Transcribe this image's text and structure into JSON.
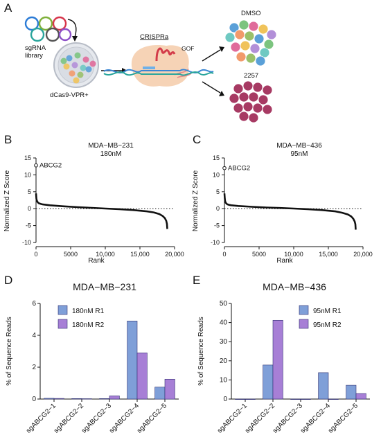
{
  "panels": {
    "a": "A",
    "b": "B",
    "c": "C",
    "d": "D",
    "e": "E"
  },
  "schematic": {
    "library_label_1": "sgRNA",
    "library_label_2": "library",
    "dish_label": "dCas9-VPR+",
    "crispr_label": "CRISPRa",
    "gof_label": "GOF",
    "dmso_label": "DMSO",
    "drug_label": "2257"
  },
  "colors": {
    "r1": "#7f9fd8",
    "r2": "#a77fd6",
    "curve": "#111111",
    "dmso_cells": [
      "#5aa0d8",
      "#7cc47f",
      "#e06b9a",
      "#f0c35a",
      "#b28fd8",
      "#6fc9c2",
      "#f29a6b",
      "#9ac06a"
    ],
    "drug_cells": "#a73a63"
  },
  "chart_data": [
    {
      "type": "line",
      "panel": "B",
      "title_line1": "MDA−MB−231",
      "title_line2": "180nM",
      "xlabel": "Rank",
      "ylabel": "Normalized Z Score",
      "xlim": [
        0,
        20000
      ],
      "ylim": [
        -10,
        15
      ],
      "xticks": [
        "0",
        "5000",
        "10,000",
        "15,000",
        "20,000"
      ],
      "yticks": [
        "-10",
        "-5",
        "0",
        "5",
        "10",
        "15"
      ],
      "highlight": {
        "label": "ABCG2",
        "x": 1,
        "y": 12.8
      },
      "x": [
        1,
        50,
        100,
        200,
        400,
        700,
        1000,
        2000,
        4000,
        6000,
        8000,
        10000,
        12000,
        14000,
        16000,
        17000,
        17800,
        18300,
        18600,
        18800,
        18900,
        18950
      ],
      "y": [
        4.5,
        3.0,
        2.5,
        2.0,
        1.6,
        1.4,
        1.25,
        1.0,
        0.7,
        0.45,
        0.25,
        0.05,
        -0.15,
        -0.4,
        -0.8,
        -1.1,
        -1.6,
        -2.2,
        -2.8,
        -3.6,
        -4.5,
        -6.0
      ],
      "baseline": 0
    },
    {
      "type": "line",
      "panel": "C",
      "title_line1": "MDA−MB−436",
      "title_line2": "95nM",
      "xlabel": "Rank",
      "ylabel": "Normalized Z Score",
      "xlim": [
        0,
        20000
      ],
      "ylim": [
        -10,
        15
      ],
      "xticks": [
        "0",
        "5000",
        "10,000",
        "15,000",
        "20,000"
      ],
      "yticks": [
        "-10",
        "-5",
        "0",
        "5",
        "10",
        "15"
      ],
      "highlight": {
        "label": "ABCG2",
        "x": 1,
        "y": 12.0
      },
      "x": [
        1,
        50,
        100,
        200,
        400,
        700,
        1000,
        2000,
        4000,
        6000,
        8000,
        10000,
        12000,
        14000,
        16000,
        17000,
        17800,
        18300,
        18600,
        18800,
        18900,
        18950
      ],
      "y": [
        4.5,
        3.0,
        2.2,
        1.7,
        1.3,
        1.1,
        1.0,
        0.8,
        0.55,
        0.35,
        0.2,
        0.05,
        -0.15,
        -0.4,
        -0.8,
        -1.2,
        -1.7,
        -2.3,
        -3.0,
        -3.8,
        -4.6,
        -6.2
      ],
      "baseline": 0
    },
    {
      "type": "bar",
      "panel": "D",
      "title": "MDA−MB−231",
      "ylabel": "% of Sequence Reads",
      "ylim": [
        0,
        6
      ],
      "yticks": [
        "0",
        "2",
        "4",
        "6"
      ],
      "categories": [
        "sgABCG2−1",
        "sgABCG2−2",
        "sgABCG2−3",
        "sgABCG2−4",
        "sgABCG2−5"
      ],
      "series": [
        {
          "name": "180nM  R1",
          "values": [
            0.05,
            0.03,
            0.03,
            4.9,
            0.75
          ]
        },
        {
          "name": "180nM  R2",
          "values": [
            0.04,
            0.02,
            0.2,
            2.9,
            1.25
          ]
        }
      ]
    },
    {
      "type": "bar",
      "panel": "E",
      "title": "MDA−MB−436",
      "ylabel": "% of Sequence Reads",
      "ylim": [
        0,
        50
      ],
      "yticks": [
        "0",
        "10",
        "20",
        "30",
        "40",
        "50"
      ],
      "categories": [
        "sgABCG2−1",
        "sgABCG2−2",
        "sgABCG2−3",
        "sgABCG2−4",
        "sgABCG2−5"
      ],
      "series": [
        {
          "name": "95nM  R1",
          "values": [
            0,
            17.8,
            0,
            13.8,
            7.2
          ]
        },
        {
          "name": "95nM  R2",
          "values": [
            0,
            41.2,
            0,
            0,
            2.9
          ]
        }
      ]
    }
  ]
}
